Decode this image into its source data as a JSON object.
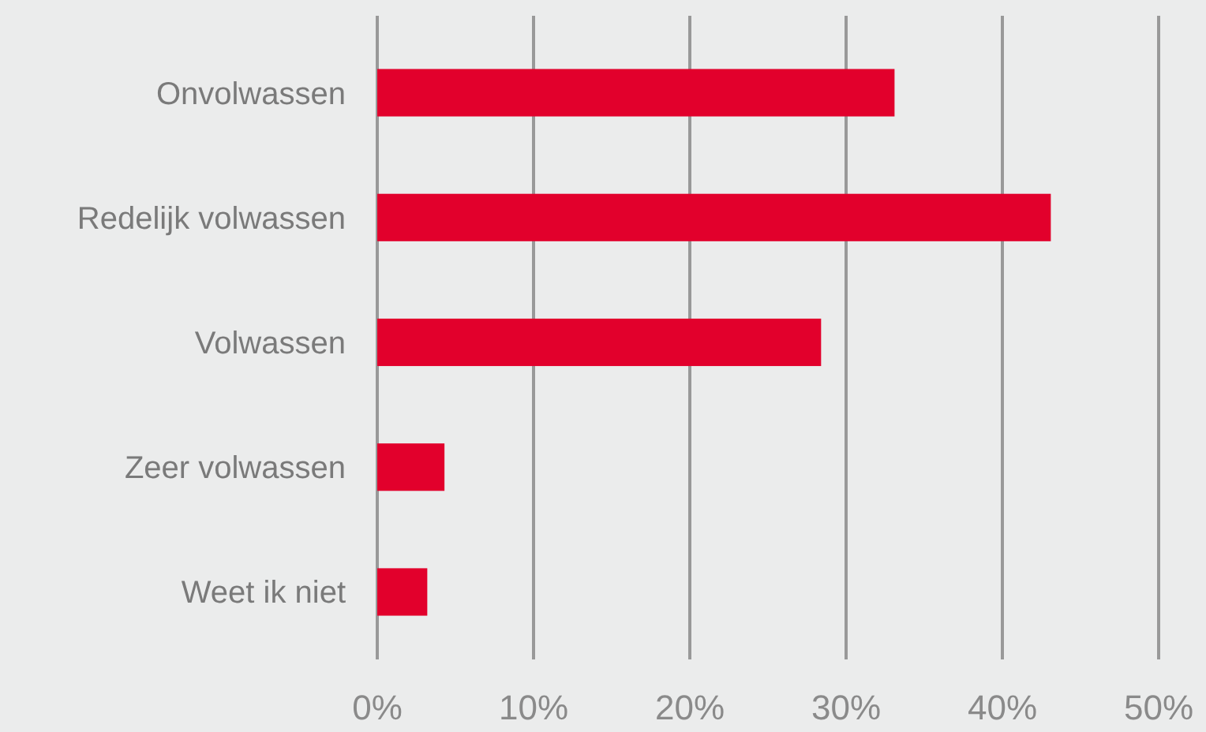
{
  "chart_data": {
    "type": "bar",
    "orientation": "horizontal",
    "categories": [
      "Onvolwassen",
      "Redelijk volwassen",
      "Volwassen",
      "Zeer volwassen",
      "Weet ik niet"
    ],
    "values": [
      33.1,
      43.1,
      28.4,
      4.3,
      3.2
    ],
    "color": "#e2002c",
    "xlim": [
      0,
      50
    ],
    "xticks": [
      {
        "value": 0,
        "label": "0%"
      },
      {
        "value": 10,
        "label": "10%"
      },
      {
        "value": 20,
        "label": "20%"
      },
      {
        "value": 30,
        "label": "30%"
      },
      {
        "value": 40,
        "label": "40%"
      },
      {
        "value": 50,
        "label": "50%"
      }
    ],
    "grid": "x"
  }
}
